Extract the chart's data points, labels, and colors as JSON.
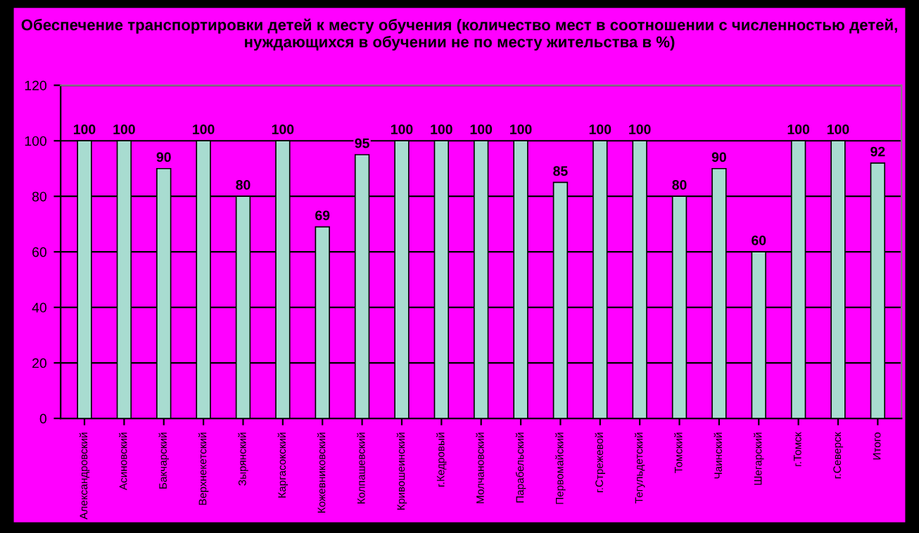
{
  "chart_data": {
    "type": "bar",
    "title": "Обеспечение транспортировки детей к месту обучения (количество мест в соотношении с численностью детей, нуждающихся в обучении не по месту жительства в %)",
    "categories": [
      "Александровский",
      "Асиновский",
      "Бакчарский",
      "Верхнекетский",
      "Зырянский",
      "Каргасокский",
      "Кожевниковский",
      "Колпашевский",
      "Кривошеинский",
      "г.Кедровый",
      "Молчановский",
      "Парабельский",
      "Первомайский",
      "г.Стрежевой",
      "Тегульдетский",
      "Томский",
      "Чаинский",
      "Шегарский",
      "г.Томск",
      "г.Северск",
      "Итого"
    ],
    "values": [
      100,
      100,
      90,
      100,
      80,
      100,
      69,
      95,
      100,
      100,
      100,
      100,
      85,
      100,
      100,
      80,
      90,
      60,
      100,
      100,
      92
    ],
    "color": "#a8dcd0",
    "data_labels": true,
    "ylim": [
      0,
      120
    ],
    "yticks": [
      0,
      20,
      40,
      60,
      80,
      100,
      120
    ],
    "grid": "y"
  }
}
